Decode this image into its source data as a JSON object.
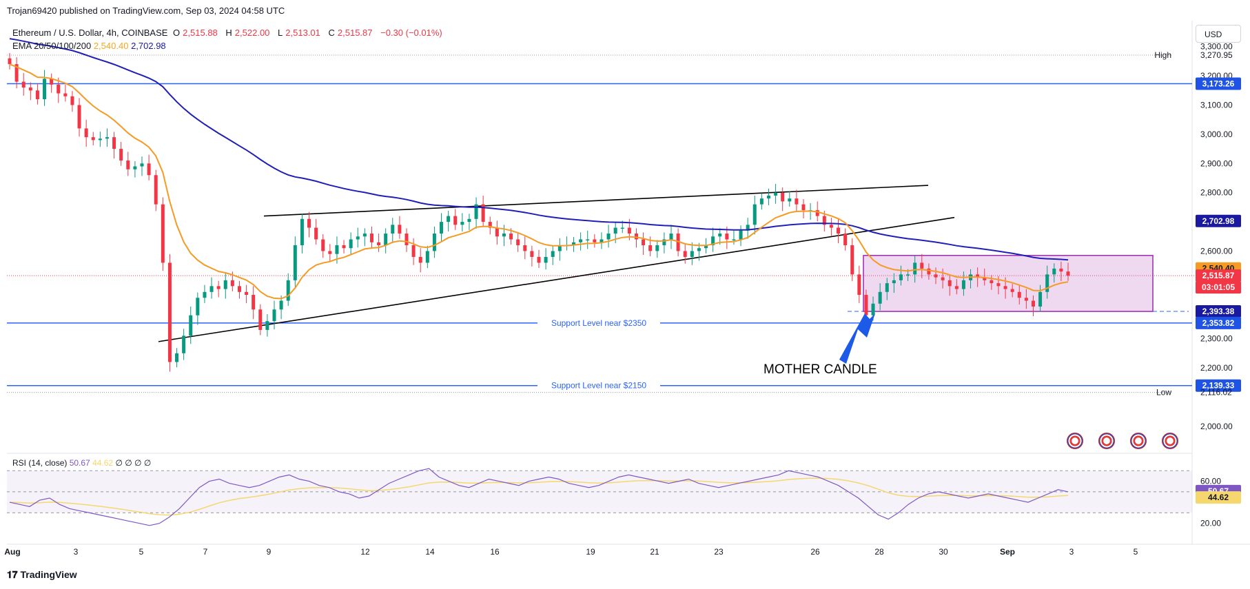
{
  "header": {
    "published": "Trojan69420 published on TradingView.com, Sep 03, 2024 04:58 UTC"
  },
  "legend": {
    "symbol": "Ethereum / U.S. Dollar, 4h, COINBASE",
    "o_label": "O",
    "o": "2,515.88",
    "h_label": "H",
    "h": "2,522.00",
    "l_label": "L",
    "l": "2,513.01",
    "c_label": "C",
    "c": "2,515.87",
    "change": "−0.30 (−0.01%)",
    "ema_label": "EMA 20/50/100/200",
    "ema_1": "2,540.40",
    "ema_2": "2,702.98"
  },
  "currency_button": "USD",
  "rsi_legend": {
    "label": "RSI (14, close)",
    "value": "50.67",
    "ma": "44.62",
    "extras": "∅ ∅ ∅ ∅"
  },
  "footer": {
    "brand": "TradingView"
  },
  "colors": {
    "up": "#089981",
    "down": "#f23645",
    "ema_fast": "#f59a23",
    "ema_slow": "#1f1fb8",
    "support": "#2962ff",
    "box": "#9c27b0",
    "rsi": "#7e57c2",
    "rsi_ma": "#f5d76e",
    "arrow": "#1e5ae8"
  },
  "chart_data": {
    "type": "candlestick",
    "symbol": "Ethereum / U.S. Dollar",
    "timeframe": "4h",
    "exchange": "COINBASE",
    "x_ticks": [
      "Aug",
      "3",
      "5",
      "7",
      "9",
      "12",
      "14",
      "16",
      "19",
      "21",
      "23",
      "26",
      "28",
      "30",
      "Sep",
      "3",
      "5"
    ],
    "y_ticks": [
      "3,300.00",
      "3,200.00",
      "3,100.00",
      "3,000.00",
      "2,900.00",
      "2,800.00",
      "2,600.00",
      "2,300.00",
      "2,200.00",
      "2,000.00"
    ],
    "ylim": [
      1950,
      3330
    ],
    "price_tags": [
      {
        "label": "High",
        "value": "3,270.95",
        "style": "plain"
      },
      {
        "value": "3,173.26",
        "style": "blue"
      },
      {
        "value": "2,702.98",
        "style": "navy"
      },
      {
        "value": "2,540.40",
        "style": "orange"
      },
      {
        "value": "2,515.87",
        "style": "red"
      },
      {
        "value": "03:01:05",
        "style": "red"
      },
      {
        "value": "2,393.38",
        "style": "navy"
      },
      {
        "value": "2,353.82",
        "style": "blue"
      },
      {
        "value": "2,139.33",
        "style": "blue"
      },
      {
        "label": "Low",
        "value": "2,116.02",
        "style": "plain"
      }
    ],
    "horizontal_lines": [
      {
        "price": 3173.26,
        "label": ""
      },
      {
        "price": 2353.82,
        "label": "Support Level near $2350"
      },
      {
        "price": 2139.33,
        "label": "Support Level near $2150"
      }
    ],
    "annotations": {
      "mother_candle": "MOTHER CANDLE",
      "range_box": {
        "top": 2585,
        "bottom": 2393.38
      }
    },
    "closes": [
      3240,
      3180,
      3160,
      3150,
      3120,
      3190,
      3170,
      3140,
      3130,
      3100,
      3020,
      2990,
      2980,
      2985,
      2990,
      2950,
      2910,
      2880,
      2890,
      2900,
      2860,
      2760,
      2560,
      2220,
      2250,
      2310,
      2380,
      2440,
      2460,
      2480,
      2470,
      2500,
      2480,
      2460,
      2450,
      2400,
      2330,
      2360,
      2400,
      2430,
      2500,
      2620,
      2710,
      2680,
      2640,
      2600,
      2590,
      2620,
      2610,
      2640,
      2650,
      2660,
      2630,
      2620,
      2660,
      2690,
      2660,
      2620,
      2580,
      2560,
      2600,
      2660,
      2700,
      2720,
      2690,
      2700,
      2710,
      2760,
      2700,
      2680,
      2650,
      2660,
      2640,
      2620,
      2600,
      2580,
      2560,
      2580,
      2600,
      2620,
      2620,
      2630,
      2640,
      2640,
      2630,
      2640,
      2660,
      2680,
      2680,
      2660,
      2640,
      2620,
      2600,
      2620,
      2640,
      2660,
      2600,
      2580,
      2600,
      2610,
      2620,
      2650,
      2660,
      2640,
      2640,
      2670,
      2690,
      2760,
      2780,
      2790,
      2800,
      2770,
      2780,
      2760,
      2740,
      2740,
      2720,
      2690,
      2680,
      2660,
      2620,
      2520,
      2450,
      2380,
      2420,
      2460,
      2490,
      2500,
      2520,
      2520,
      2560,
      2540,
      2520,
      2510,
      2500,
      2480,
      2470,
      2500,
      2520,
      2510,
      2500,
      2490,
      2480,
      2470,
      2460,
      2440,
      2430,
      2410,
      2460,
      2520,
      2540,
      2530,
      2515.87
    ],
    "ema_fast_endpoint": 2540.4,
    "ema_slow_endpoint": 2702.98,
    "rsi": {
      "levels": [
        70,
        60,
        50,
        30,
        20
      ],
      "y_ticks": [
        "60.00",
        "20.00"
      ],
      "value": 50.67,
      "ma": 44.62,
      "series": [
        40,
        38,
        36,
        42,
        44,
        38,
        34,
        32,
        30,
        28,
        26,
        24,
        22,
        20,
        18,
        20,
        26,
        34,
        44,
        54,
        60,
        62,
        58,
        56,
        54,
        56,
        60,
        64,
        66,
        62,
        60,
        56,
        54,
        50,
        48,
        44,
        46,
        52,
        58,
        62,
        66,
        70,
        72,
        64,
        60,
        56,
        54,
        58,
        62,
        60,
        58,
        56,
        60,
        62,
        64,
        62,
        58,
        56,
        54,
        56,
        60,
        64,
        66,
        64,
        62,
        60,
        58,
        60,
        62,
        58,
        56,
        54,
        56,
        58,
        60,
        62,
        64,
        66,
        70,
        68,
        66,
        64,
        60,
        56,
        50,
        44,
        36,
        28,
        24,
        30,
        38,
        44,
        48,
        50,
        48,
        46,
        44,
        46,
        48,
        46,
        44,
        42,
        40,
        44,
        48,
        52,
        50
      ]
    }
  }
}
